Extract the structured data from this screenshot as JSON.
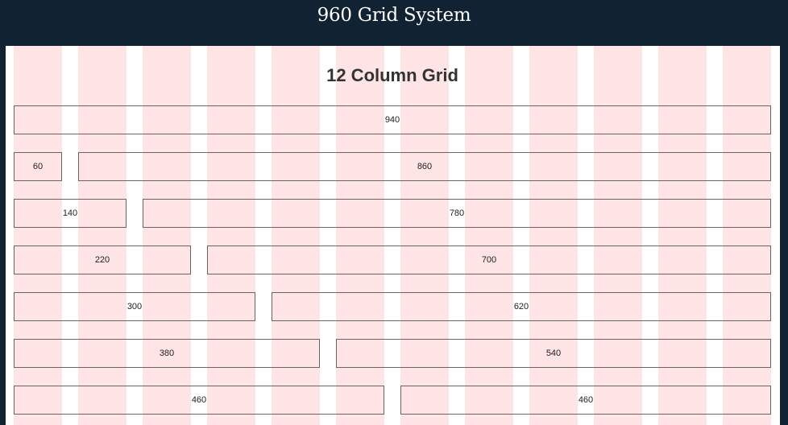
{
  "header": {
    "title": "960 Grid System"
  },
  "main": {
    "heading": "12 Column Grid",
    "rows": [
      [
        "940"
      ],
      [
        "60",
        "860"
      ],
      [
        "140",
        "780"
      ],
      [
        "220",
        "700"
      ],
      [
        "300",
        "620"
      ],
      [
        "380",
        "540"
      ],
      [
        "460",
        "460"
      ]
    ]
  },
  "colors": {
    "header_bg": "#112233",
    "column_tint": "#ffe4e6",
    "box_border": "#666666"
  }
}
